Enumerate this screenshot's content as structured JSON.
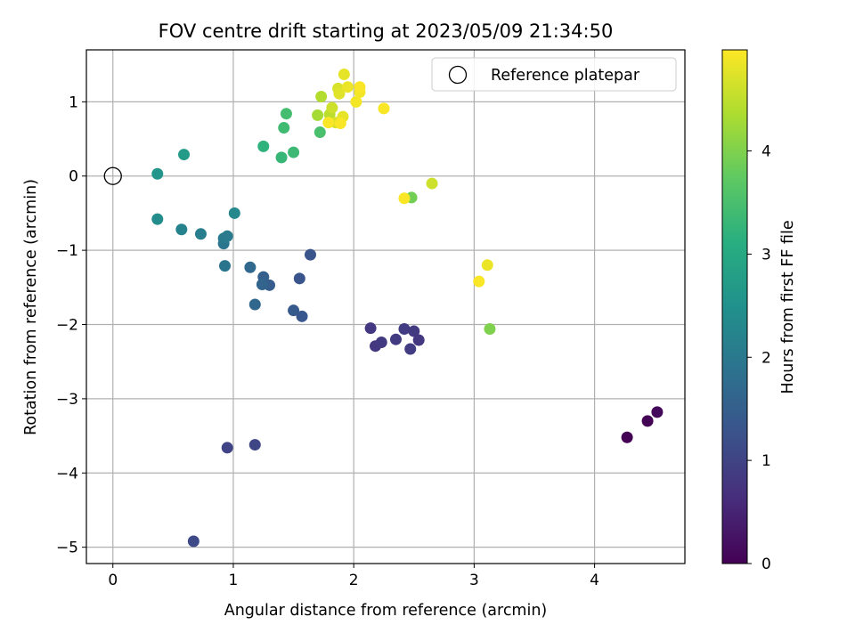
{
  "chart_data": {
    "type": "scatter",
    "title": "FOV centre drift starting at 2023/05/09 21:34:50",
    "xlabel": "Angular distance from reference (arcmin)",
    "ylabel": "Rotation from reference (arcmin)",
    "xlim": [
      -0.22,
      4.75
    ],
    "ylim": [
      -5.22,
      1.7
    ],
    "xticks": [
      0,
      1,
      2,
      3,
      4
    ],
    "yticks": [
      1,
      0,
      -1,
      -2,
      -3,
      -4,
      -5
    ],
    "grid": true,
    "colormap": "viridis",
    "colorbar": {
      "label": "Hours from first FF file",
      "range": [
        0,
        4.98
      ],
      "ticks": [
        0,
        1,
        2,
        3,
        4
      ]
    },
    "legend": {
      "position": "top-right",
      "entries": [
        "Reference platepar"
      ]
    },
    "reference_point": {
      "x": 0,
      "y": 0,
      "marker": "open-circle"
    },
    "points": [
      {
        "x": 4.27,
        "y": -3.52,
        "h": 0.0
      },
      {
        "x": 4.44,
        "y": -3.3,
        "h": 0.05
      },
      {
        "x": 4.52,
        "y": -3.18,
        "h": 0.1
      },
      {
        "x": 2.14,
        "y": -2.05,
        "h": 0.8
      },
      {
        "x": 2.18,
        "y": -2.29,
        "h": 0.8
      },
      {
        "x": 2.23,
        "y": -2.24,
        "h": 0.85
      },
      {
        "x": 2.35,
        "y": -2.2,
        "h": 0.85
      },
      {
        "x": 2.42,
        "y": -2.06,
        "h": 0.9
      },
      {
        "x": 2.47,
        "y": -2.33,
        "h": 0.9
      },
      {
        "x": 2.5,
        "y": -2.09,
        "h": 0.85
      },
      {
        "x": 2.54,
        "y": -2.21,
        "h": 0.8
      },
      {
        "x": 0.95,
        "y": -3.66,
        "h": 1.0
      },
      {
        "x": 1.18,
        "y": -3.62,
        "h": 1.05
      },
      {
        "x": 0.67,
        "y": -4.92,
        "h": 1.1
      },
      {
        "x": 1.64,
        "y": -1.06,
        "h": 1.3
      },
      {
        "x": 1.55,
        "y": -1.38,
        "h": 1.3
      },
      {
        "x": 1.57,
        "y": -1.89,
        "h": 1.35
      },
      {
        "x": 1.5,
        "y": -1.81,
        "h": 1.4
      },
      {
        "x": 1.3,
        "y": -1.47,
        "h": 1.45
      },
      {
        "x": 1.25,
        "y": -1.36,
        "h": 1.5
      },
      {
        "x": 1.24,
        "y": -1.46,
        "h": 1.6
      },
      {
        "x": 1.18,
        "y": -1.73,
        "h": 1.65
      },
      {
        "x": 1.14,
        "y": -1.23,
        "h": 1.7
      },
      {
        "x": 0.93,
        "y": -1.21,
        "h": 1.9
      },
      {
        "x": 0.92,
        "y": -0.91,
        "h": 1.95
      },
      {
        "x": 0.92,
        "y": -0.84,
        "h": 2.0
      },
      {
        "x": 0.95,
        "y": -0.81,
        "h": 2.05
      },
      {
        "x": 0.73,
        "y": -0.78,
        "h": 2.1
      },
      {
        "x": 0.57,
        "y": -0.72,
        "h": 2.2
      },
      {
        "x": 1.01,
        "y": -0.5,
        "h": 2.3
      },
      {
        "x": 0.37,
        "y": -0.58,
        "h": 2.4
      },
      {
        "x": 0.37,
        "y": 0.03,
        "h": 2.6
      },
      {
        "x": 0.59,
        "y": 0.29,
        "h": 2.7
      },
      {
        "x": 1.25,
        "y": 0.4,
        "h": 3.2
      },
      {
        "x": 1.4,
        "y": 0.25,
        "h": 3.3
      },
      {
        "x": 1.5,
        "y": 0.32,
        "h": 3.35
      },
      {
        "x": 1.42,
        "y": 0.65,
        "h": 3.4
      },
      {
        "x": 1.44,
        "y": 0.84,
        "h": 3.45
      },
      {
        "x": 1.72,
        "y": 0.59,
        "h": 3.5
      },
      {
        "x": 2.48,
        "y": -0.29,
        "h": 3.9
      },
      {
        "x": 3.13,
        "y": -2.06,
        "h": 4.0
      },
      {
        "x": 1.7,
        "y": 0.82,
        "h": 4.3
      },
      {
        "x": 1.73,
        "y": 1.07,
        "h": 4.4
      },
      {
        "x": 1.8,
        "y": 0.83,
        "h": 4.45
      },
      {
        "x": 1.82,
        "y": 0.92,
        "h": 4.6
      },
      {
        "x": 1.85,
        "y": 0.72,
        "h": 4.7
      },
      {
        "x": 1.87,
        "y": 1.18,
        "h": 4.7
      },
      {
        "x": 1.88,
        "y": 1.11,
        "h": 4.75
      },
      {
        "x": 1.91,
        "y": 0.8,
        "h": 4.8
      },
      {
        "x": 1.92,
        "y": 1.37,
        "h": 4.8
      },
      {
        "x": 1.95,
        "y": 1.2,
        "h": 4.85
      },
      {
        "x": 2.02,
        "y": 1.0,
        "h": 4.9
      },
      {
        "x": 2.05,
        "y": 1.13,
        "h": 4.9
      },
      {
        "x": 2.05,
        "y": 1.2,
        "h": 4.95
      },
      {
        "x": 2.25,
        "y": 0.91,
        "h": 4.95
      },
      {
        "x": 1.89,
        "y": 0.71,
        "h": 4.95
      },
      {
        "x": 1.79,
        "y": 0.72,
        "h": 4.95
      },
      {
        "x": 2.65,
        "y": -0.1,
        "h": 4.6
      },
      {
        "x": 2.42,
        "y": -0.3,
        "h": 4.95
      },
      {
        "x": 3.11,
        "y": -1.2,
        "h": 4.85
      },
      {
        "x": 3.04,
        "y": -1.42,
        "h": 4.95
      }
    ]
  }
}
